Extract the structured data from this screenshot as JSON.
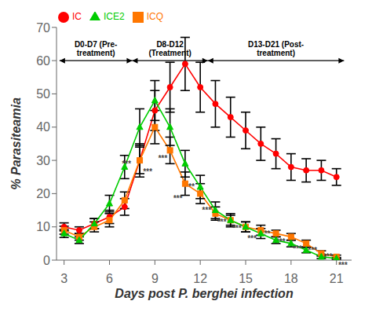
{
  "chart_data": {
    "type": "line",
    "xlabel": "Days post P. berghei infection",
    "ylabel": "% Parasiteamia",
    "x": [
      3,
      4,
      5,
      6,
      7,
      8,
      9,
      10,
      11,
      12,
      13,
      14,
      15,
      16,
      17,
      18,
      19,
      20,
      21
    ],
    "series": [
      {
        "name": "IC",
        "color": "#FF0000",
        "marker": "circle",
        "values": [
          10,
          9,
          11,
          13,
          16,
          30,
          45,
          52,
          59,
          52,
          47,
          43,
          39,
          35,
          32,
          28,
          27,
          27,
          25
        ],
        "errors": [
          1.2,
          1.0,
          1.5,
          2.0,
          2.5,
          5.0,
          6.0,
          7.5,
          8.0,
          7.5,
          7.0,
          6.0,
          5.5,
          5.0,
          4.5,
          4.0,
          3.5,
          3.0,
          2.5
        ]
      },
      {
        "name": "ICQ",
        "color": "#FF7700",
        "marker": "square",
        "values": [
          9,
          7,
          10,
          12,
          18,
          30,
          40,
          33,
          23,
          20,
          14,
          12,
          10,
          9,
          8,
          7,
          5,
          2,
          1
        ],
        "errors": [
          1.2,
          1.0,
          1.5,
          2.0,
          2.5,
          4.0,
          5.0,
          4.0,
          3.5,
          3.0,
          2.0,
          1.5,
          1.5,
          1.5,
          1.0,
          1.0,
          1.0,
          0.8,
          0.5
        ]
      },
      {
        "name": "ICE2",
        "color": "#00CC00",
        "marker": "triangle",
        "values": [
          8,
          6,
          11,
          17,
          28,
          40,
          48,
          40,
          29,
          22,
          15,
          12,
          10,
          8,
          6,
          5,
          3,
          1,
          0.5
        ],
        "errors": [
          1.2,
          1.0,
          1.5,
          2.5,
          3.5,
          5.5,
          6.0,
          5.5,
          4.0,
          3.5,
          2.5,
          2.0,
          1.5,
          1.5,
          1.0,
          1.0,
          0.8,
          0.5,
          0.3
        ]
      }
    ],
    "xlim": [
      2.5,
      22
    ],
    "ylim": [
      0,
      70
    ],
    "xticks": [
      3,
      6,
      9,
      12,
      15,
      18,
      21
    ],
    "yticks": [
      0,
      10,
      20,
      30,
      40,
      50,
      60,
      70
    ],
    "grid": false,
    "legend": "upper left",
    "annotations": [
      {
        "text": "***",
        "x": 6.8,
        "y": 29.0
      },
      {
        "text": "***",
        "x": 8.2,
        "y": 26.5
      },
      {
        "text": "***",
        "x": 9.2,
        "y": 30.5
      },
      {
        "text": "***",
        "x": 10.2,
        "y": 18.5
      },
      {
        "text": "***",
        "x": 11.0,
        "y": 22.0
      },
      {
        "text": "***",
        "x": 12.1,
        "y": 15.0
      },
      {
        "text": "***",
        "x": 13.1,
        "y": 11.5
      },
      {
        "text": "***",
        "x": 14.1,
        "y": 9.5
      },
      {
        "text": "***",
        "x": 15.1,
        "y": 6.5
      },
      {
        "text": "***",
        "x": 16.0,
        "y": 8.0
      },
      {
        "text": "***",
        "x": 17.0,
        "y": 5.5
      },
      {
        "text": "***",
        "x": 18.1,
        "y": 3.5
      },
      {
        "text": "***",
        "x": 19.1,
        "y": 3.0
      },
      {
        "text": "***",
        "x": 20.1,
        "y": 1.0
      },
      {
        "text": "***",
        "x": 21.1,
        "y": -1.5
      }
    ],
    "brackets": [
      {
        "x1": 2.7,
        "x2": 7.5,
        "y": 60,
        "text_x": 5.1,
        "text": "D0-D7 (Pre-\ntreatment)"
      },
      {
        "x1": 7.5,
        "x2": 12.5,
        "y": 60,
        "text_x": 10.0,
        "text": "D8-D12\n(Treatment)"
      },
      {
        "x1": 12.5,
        "x2": 21.5,
        "y": 60,
        "text_x": 17.0,
        "text": "D13-D21 (Post-\ntreatment)"
      }
    ]
  }
}
